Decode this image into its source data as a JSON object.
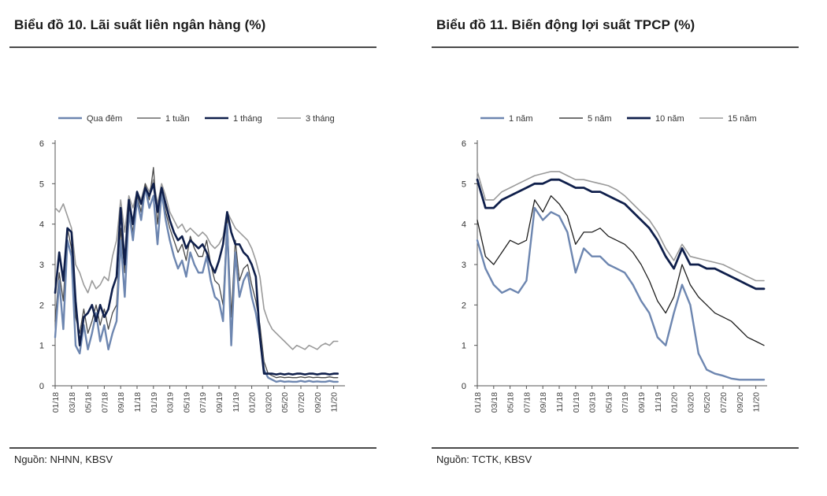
{
  "chart_data": [
    {
      "type": "line",
      "title": "Biểu đồ 10. Lãi suất liên ngân hàng (%)",
      "source": "Nguồn: NHNN, KBSV",
      "ylim": [
        0,
        6
      ],
      "yticks": [
        "0",
        "1",
        "2",
        "3",
        "4",
        "5",
        "6"
      ],
      "x_tick_labels": [
        "01/18",
        "03/18",
        "05/18",
        "07/18",
        "09/18",
        "11/18",
        "01/19",
        "03/19",
        "05/19",
        "07/19",
        "09/19",
        "11/19",
        "01/20",
        "03/20",
        "05/20",
        "07/20",
        "09/20",
        "11/20"
      ],
      "x_range": [
        0,
        35
      ],
      "series": [
        {
          "name": "Qua đêm",
          "color": "#6d86b0",
          "width": 2.4,
          "x": [
            0,
            0.5,
            1,
            1.5,
            2,
            2.5,
            3,
            3.5,
            4,
            4.5,
            5,
            5.5,
            6,
            6.5,
            7,
            7.5,
            8,
            8.5,
            9,
            9.5,
            10,
            10.5,
            11,
            11.5,
            12,
            12.5,
            13,
            13.5,
            14,
            14.5,
            15,
            15.5,
            16,
            16.5,
            17,
            17.5,
            18,
            18.5,
            19,
            19.5,
            20,
            20.5,
            21,
            21.5,
            22,
            22.5,
            23,
            23.5,
            24,
            24.5,
            25,
            25.5,
            26,
            26.5,
            27,
            27.5,
            28,
            28.5,
            29,
            29.5,
            30,
            30.5,
            31,
            31.5,
            32,
            32.5,
            33,
            33.5,
            34,
            34.5
          ],
          "values": [
            1.2,
            2.6,
            1.4,
            3.6,
            3.2,
            1.0,
            0.8,
            1.5,
            0.9,
            1.3,
            1.8,
            1.1,
            1.5,
            0.9,
            1.3,
            1.6,
            3.6,
            2.2,
            4.3,
            3.6,
            4.6,
            4.1,
            4.9,
            4.4,
            4.7,
            3.5,
            4.8,
            4.1,
            3.6,
            3.2,
            2.9,
            3.1,
            2.7,
            3.3,
            3.0,
            2.8,
            2.8,
            3.2,
            2.6,
            2.2,
            2.1,
            1.6,
            4.0,
            1.0,
            3.3,
            2.2,
            2.6,
            2.8,
            2.2,
            1.8,
            1.2,
            0.4,
            0.2,
            0.15,
            0.1,
            0.12,
            0.1,
            0.11,
            0.1,
            0.1,
            0.12,
            0.1,
            0.12,
            0.1,
            0.11,
            0.1,
            0.1,
            0.12,
            0.1,
            0.1
          ]
        },
        {
          "name": "1 tuần",
          "color": "#4a4a4a",
          "width": 1.3,
          "x": [
            0,
            0.5,
            1,
            1.5,
            2,
            2.5,
            3,
            3.5,
            4,
            4.5,
            5,
            5.5,
            6,
            6.5,
            7,
            7.5,
            8,
            8.5,
            9,
            9.5,
            10,
            10.5,
            11,
            11.5,
            12,
            12.5,
            13,
            13.5,
            14,
            14.5,
            15,
            15.5,
            16,
            16.5,
            17,
            17.5,
            18,
            18.5,
            19,
            19.5,
            20,
            20.5,
            21,
            21.5,
            22,
            22.5,
            23,
            23.5,
            24,
            24.5,
            25,
            25.5,
            26,
            26.5,
            27,
            27.5,
            28,
            28.5,
            29,
            29.5,
            30,
            30.5,
            31,
            31.5,
            32,
            32.5,
            33,
            33.5,
            34,
            34.5
          ],
          "values": [
            1.6,
            2.8,
            2.1,
            3.9,
            3.4,
            1.7,
            1.3,
            1.9,
            1.3,
            1.6,
            2.0,
            1.5,
            1.9,
            1.4,
            1.8,
            2.0,
            3.9,
            2.8,
            4.4,
            3.8,
            4.7,
            4.3,
            5.0,
            4.6,
            5.4,
            4.0,
            4.9,
            4.3,
            3.9,
            3.6,
            3.3,
            3.5,
            3.1,
            3.7,
            3.4,
            3.2,
            3.2,
            3.6,
            3.0,
            2.6,
            2.5,
            2.0,
            4.2,
            1.7,
            3.6,
            2.6,
            2.9,
            3.0,
            2.5,
            2.1,
            1.5,
            0.6,
            0.3,
            0.25,
            0.2,
            0.22,
            0.2,
            0.21,
            0.2,
            0.2,
            0.22,
            0.2,
            0.22,
            0.2,
            0.21,
            0.2,
            0.2,
            0.22,
            0.2,
            0.2
          ]
        },
        {
          "name": "1 tháng",
          "color": "#0f1f4b",
          "width": 2.6,
          "x": [
            0,
            0.5,
            1,
            1.5,
            2,
            2.5,
            3,
            3.5,
            4,
            4.5,
            5,
            5.5,
            6,
            6.5,
            7,
            7.5,
            8,
            8.5,
            9,
            9.5,
            10,
            10.5,
            11,
            11.5,
            12,
            12.5,
            13,
            13.5,
            14,
            14.5,
            15,
            15.5,
            16,
            16.5,
            17,
            17.5,
            18,
            18.5,
            19,
            19.5,
            20,
            20.5,
            21,
            21.5,
            22,
            22.5,
            23,
            23.5,
            24,
            24.5,
            25,
            25.5,
            26,
            26.5,
            27,
            27.5,
            28,
            28.5,
            29,
            29.5,
            30,
            30.5,
            31,
            31.5,
            32,
            32.5,
            33,
            33.5,
            34,
            34.5
          ],
          "values": [
            2.3,
            3.3,
            2.6,
            3.9,
            3.8,
            2.1,
            1.0,
            1.7,
            1.8,
            2.0,
            1.6,
            2.0,
            1.7,
            1.9,
            2.4,
            2.7,
            4.4,
            3.0,
            4.6,
            4.0,
            4.8,
            4.5,
            4.9,
            4.7,
            5.0,
            4.3,
            4.9,
            4.5,
            4.1,
            3.8,
            3.6,
            3.7,
            3.4,
            3.6,
            3.5,
            3.4,
            3.5,
            3.3,
            3.0,
            2.8,
            3.1,
            3.5,
            4.3,
            3.8,
            3.5,
            3.5,
            3.3,
            3.2,
            3.0,
            2.7,
            1.2,
            0.3,
            0.3,
            0.3,
            0.28,
            0.3,
            0.28,
            0.3,
            0.28,
            0.3,
            0.3,
            0.28,
            0.3,
            0.3,
            0.28,
            0.3,
            0.3,
            0.28,
            0.3,
            0.3
          ]
        },
        {
          "name": "3 tháng",
          "color": "#9a9a9a",
          "width": 1.6,
          "x": [
            0,
            0.5,
            1,
            1.5,
            2,
            2.5,
            3,
            3.5,
            4,
            4.5,
            5,
            5.5,
            6,
            6.5,
            7,
            7.5,
            8,
            8.5,
            9,
            9.5,
            10,
            10.5,
            11,
            11.5,
            12,
            12.5,
            13,
            13.5,
            14,
            14.5,
            15,
            15.5,
            16,
            16.5,
            17,
            17.5,
            18,
            18.5,
            19,
            19.5,
            20,
            20.5,
            21,
            21.5,
            22,
            22.5,
            23,
            23.5,
            24,
            24.5,
            25,
            25.5,
            26,
            26.5,
            27,
            27.5,
            28,
            28.5,
            29,
            29.5,
            30,
            30.5,
            31,
            31.5,
            32,
            32.5,
            33,
            33.5,
            34,
            34.5
          ],
          "values": [
            4.4,
            4.3,
            4.5,
            4.2,
            3.9,
            3.0,
            2.8,
            2.5,
            2.3,
            2.6,
            2.4,
            2.5,
            2.7,
            2.6,
            3.2,
            3.6,
            4.6,
            3.8,
            4.7,
            4.4,
            4.8,
            4.6,
            5.0,
            4.8,
            5.1,
            4.5,
            5.0,
            4.7,
            4.3,
            4.1,
            3.9,
            4.0,
            3.8,
            3.9,
            3.8,
            3.7,
            3.8,
            3.7,
            3.5,
            3.4,
            3.5,
            3.7,
            4.3,
            4.1,
            3.9,
            3.8,
            3.7,
            3.6,
            3.4,
            3.1,
            2.7,
            1.9,
            1.6,
            1.4,
            1.3,
            1.2,
            1.1,
            1.0,
            0.9,
            1.0,
            0.95,
            0.9,
            1.0,
            0.95,
            0.9,
            1.0,
            1.05,
            1.0,
            1.1,
            1.1
          ]
        }
      ],
      "legend": [
        "Qua đêm",
        "1 tuần",
        "1 tháng",
        "3 tháng"
      ]
    },
    {
      "type": "line",
      "title": "Biểu đồ 11. Biến động lợi suất TPCP (%)",
      "source": "Nguồn: TCTK, KBSV",
      "ylim": [
        0,
        6
      ],
      "yticks": [
        "0",
        "1",
        "2",
        "3",
        "4",
        "5",
        "6"
      ],
      "x_tick_labels": [
        "01/18",
        "03/18",
        "05/18",
        "07/18",
        "09/18",
        "11/18",
        "01/19",
        "03/19",
        "05/19",
        "07/19",
        "09/19",
        "11/19",
        "01/20",
        "03/20",
        "05/20",
        "07/20",
        "09/20",
        "11/20"
      ],
      "x_range": [
        0,
        35
      ],
      "series": [
        {
          "name": "1 năm",
          "color": "#6d86b0",
          "width": 2.4,
          "x": [
            0,
            1,
            2,
            3,
            4,
            5,
            6,
            7,
            8,
            9,
            10,
            11,
            12,
            13,
            14,
            15,
            16,
            17,
            18,
            19,
            20,
            21,
            22,
            23,
            24,
            25,
            26,
            27,
            28,
            29,
            30,
            31,
            32,
            33,
            34,
            35
          ],
          "values": [
            3.6,
            2.9,
            2.5,
            2.3,
            2.4,
            2.3,
            2.6,
            4.4,
            4.1,
            4.3,
            4.2,
            3.8,
            2.8,
            3.4,
            3.2,
            3.2,
            3.0,
            2.9,
            2.8,
            2.5,
            2.1,
            1.8,
            1.2,
            1.0,
            1.8,
            2.5,
            2.0,
            0.8,
            0.4,
            0.3,
            0.25,
            0.18,
            0.15,
            0.15,
            0.15,
            0.15
          ]
        },
        {
          "name": "5 năm",
          "color": "#1e1e1e",
          "width": 1.3,
          "x": [
            0,
            1,
            2,
            3,
            4,
            5,
            6,
            7,
            8,
            9,
            10,
            11,
            12,
            13,
            14,
            15,
            16,
            17,
            18,
            19,
            20,
            21,
            22,
            23,
            24,
            25,
            26,
            27,
            28,
            29,
            30,
            31,
            32,
            33,
            34,
            35
          ],
          "values": [
            4.1,
            3.2,
            3.0,
            3.3,
            3.6,
            3.5,
            3.6,
            4.6,
            4.3,
            4.7,
            4.5,
            4.2,
            3.5,
            3.8,
            3.8,
            3.9,
            3.7,
            3.6,
            3.5,
            3.3,
            3.0,
            2.6,
            2.1,
            1.8,
            2.2,
            3.0,
            2.5,
            2.2,
            2.0,
            1.8,
            1.7,
            1.6,
            1.4,
            1.2,
            1.1,
            1.0
          ]
        },
        {
          "name": "10 năm",
          "color": "#0f1f4b",
          "width": 2.8,
          "x": [
            0,
            1,
            2,
            3,
            4,
            5,
            6,
            7,
            8,
            9,
            10,
            11,
            12,
            13,
            14,
            15,
            16,
            17,
            18,
            19,
            20,
            21,
            22,
            23,
            24,
            25,
            26,
            27,
            28,
            29,
            30,
            31,
            32,
            33,
            34,
            35
          ],
          "values": [
            5.1,
            4.4,
            4.4,
            4.6,
            4.7,
            4.8,
            4.9,
            5.0,
            5.0,
            5.1,
            5.1,
            5.0,
            4.9,
            4.9,
            4.8,
            4.8,
            4.7,
            4.6,
            4.5,
            4.3,
            4.1,
            3.9,
            3.6,
            3.2,
            2.9,
            3.4,
            3.0,
            3.0,
            2.9,
            2.9,
            2.8,
            2.7,
            2.6,
            2.5,
            2.4,
            2.4
          ]
        },
        {
          "name": "15 năm",
          "color": "#9a9a9a",
          "width": 1.6,
          "x": [
            0,
            1,
            2,
            3,
            4,
            5,
            6,
            7,
            8,
            9,
            10,
            11,
            12,
            13,
            14,
            15,
            16,
            17,
            18,
            19,
            20,
            21,
            22,
            23,
            24,
            25,
            26,
            27,
            28,
            29,
            30,
            31,
            32,
            33,
            34,
            35
          ],
          "values": [
            5.3,
            4.6,
            4.6,
            4.8,
            4.9,
            5.0,
            5.1,
            5.2,
            5.25,
            5.3,
            5.3,
            5.2,
            5.1,
            5.1,
            5.05,
            5.0,
            4.95,
            4.85,
            4.7,
            4.5,
            4.3,
            4.1,
            3.8,
            3.4,
            3.1,
            3.5,
            3.2,
            3.15,
            3.1,
            3.05,
            3.0,
            2.9,
            2.8,
            2.7,
            2.6,
            2.6
          ]
        }
      ],
      "legend": [
        "1 năm",
        "5 năm",
        "10 năm",
        "15 năm"
      ]
    }
  ]
}
